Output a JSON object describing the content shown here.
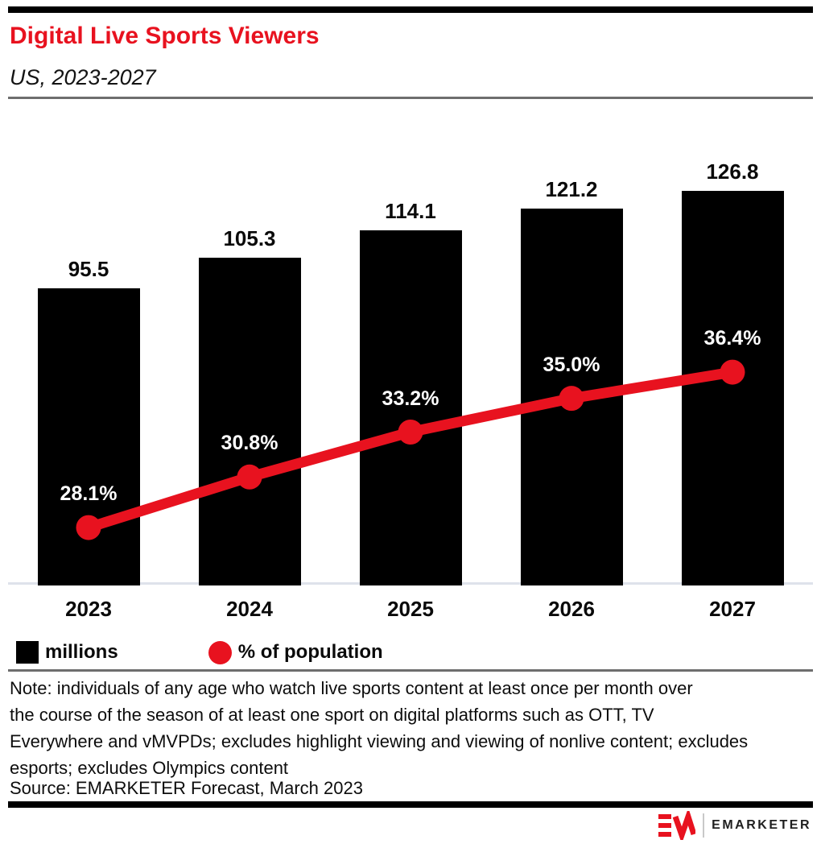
{
  "header": {
    "title": "Digital Live Sports Viewers",
    "subtitle": "US, 2023-2027",
    "accent_color": "#e8121f"
  },
  "chart_data": {
    "type": "bar",
    "combo": "bar+line",
    "title": "Digital Live Sports Viewers",
    "subtitle": "US, 2023-2027",
    "categories": [
      "2023",
      "2024",
      "2025",
      "2026",
      "2027"
    ],
    "series": [
      {
        "name": "millions",
        "type": "bar",
        "color": "#000000",
        "values": [
          95.5,
          105.3,
          114.1,
          121.2,
          126.8
        ]
      },
      {
        "name": "% of population",
        "type": "line",
        "color": "#e8121f",
        "values": [
          28.1,
          30.8,
          33.2,
          35.0,
          36.4
        ]
      }
    ],
    "bar_value_labels": [
      "95.5",
      "105.3",
      "114.1",
      "121.2",
      "126.8"
    ],
    "line_value_labels": [
      "28.1%",
      "30.8%",
      "33.2%",
      "35.0%",
      "36.4%"
    ],
    "xlabel": "",
    "ylabel": "",
    "grid": false,
    "legend_position": "bottom-left"
  },
  "legend": {
    "items": [
      {
        "label": "millions",
        "swatch": "square",
        "color": "#000000"
      },
      {
        "label": "% of population",
        "swatch": "circle",
        "color": "#e8121f"
      }
    ]
  },
  "footer": {
    "note_lines": [
      "Note: individuals of any age who watch live sports content at least once per month over",
      "the course of the season of at least one sport on digital platforms such as OTT, TV",
      "Everywhere and vMVPDs; excludes highlight viewing and viewing of nonlive content; excludes",
      "esports; excludes Olympics content"
    ],
    "source": "Source: EMARKETER Forecast, March 2023",
    "brand": "EMARKETER"
  }
}
